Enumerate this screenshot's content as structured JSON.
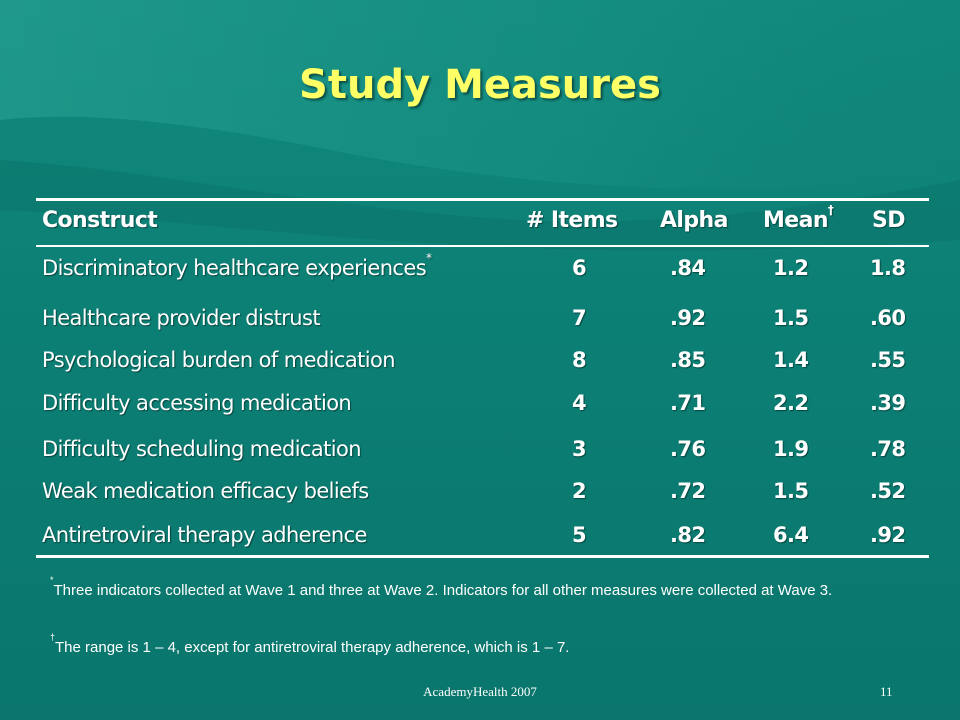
{
  "slide": {
    "title": "Study Measures",
    "colors": {
      "background": "#0f8579",
      "title": "#ffff66",
      "text": "#ffffff"
    }
  },
  "table": {
    "headers": {
      "construct": "Construct",
      "items": "# Items",
      "alpha": "Alpha",
      "mean": "Mean",
      "mean_sup": "†",
      "sd": "SD"
    },
    "rows": [
      {
        "construct": "Discriminatory healthcare experiences",
        "sup": "*",
        "items": "6",
        "alpha": ".84",
        "mean": "1.2",
        "sd": "1.8"
      },
      {
        "construct": "Healthcare provider distrust",
        "sup": "",
        "items": "7",
        "alpha": ".92",
        "mean": "1.5",
        "sd": ".60"
      },
      {
        "construct": "Psychological burden of medication",
        "sup": "",
        "items": "8",
        "alpha": ".85",
        "mean": "1.4",
        "sd": ".55"
      },
      {
        "construct": "Difficulty accessing medication",
        "sup": "",
        "items": "4",
        "alpha": ".71",
        "mean": "2.2",
        "sd": ".39"
      },
      {
        "construct": "Difficulty scheduling medication",
        "sup": "",
        "items": "3",
        "alpha": ".76",
        "mean": "1.9",
        "sd": ".78"
      },
      {
        "construct": "Weak medication efficacy beliefs",
        "sup": "",
        "items": "2",
        "alpha": ".72",
        "mean": "1.5",
        "sd": ".52"
      },
      {
        "construct": "Antiretroviral therapy adherence",
        "sup": "",
        "items": "5",
        "alpha": ".82",
        "mean": "6.4",
        "sd": ".92"
      }
    ]
  },
  "footnotes": {
    "fn1_mark": "*",
    "fn1_text": "Three indicators collected at Wave 1 and  three at Wave 2. Indicators for all other measures were collected at Wave 3.",
    "fn2_mark": "†",
    "fn2_text": "The range is 1 – 4, except for antiretroviral therapy adherence, which is 1 – 7."
  },
  "footer": {
    "source": "AcademyHealth 2007",
    "page_number": "11"
  }
}
